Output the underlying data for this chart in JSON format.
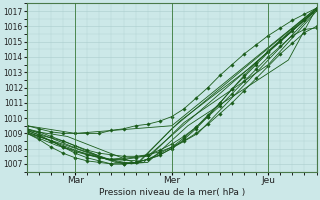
{
  "title": "Pression niveau de la mer( hPa )",
  "ylim": [
    1006.5,
    1017.5
  ],
  "yticks": [
    1007,
    1008,
    1009,
    1010,
    1011,
    1012,
    1013,
    1014,
    1015,
    1016,
    1017
  ],
  "background_color": "#cce8e8",
  "grid_color": "#aacccc",
  "line_color": "#1a5c1a",
  "xlim": [
    0,
    144
  ],
  "xtick_positions": [
    24,
    72,
    120
  ],
  "xtick_labels": [
    "Mar",
    "Mer",
    "Jeu"
  ],
  "day_lines": [
    24,
    72,
    120
  ],
  "series": [
    {
      "x": [
        0,
        24,
        72,
        144
      ],
      "y": [
        1009.5,
        1009.0,
        1009.5,
        1017.2
      ]
    },
    {
      "x": [
        0,
        20,
        55,
        72,
        144
      ],
      "y": [
        1009.2,
        1008.8,
        1007.0,
        1009.3,
        1017.2
      ]
    },
    {
      "x": [
        0,
        15,
        40,
        60,
        144
      ],
      "y": [
        1009.0,
        1008.2,
        1007.3,
        1007.5,
        1017.1
      ]
    },
    {
      "x": [
        0,
        12,
        30,
        52,
        65,
        85,
        144
      ],
      "y": [
        1009.1,
        1008.5,
        1007.6,
        1007.0,
        1007.5,
        1009.0,
        1017.1
      ]
    },
    {
      "x": [
        0,
        10,
        25,
        48,
        60,
        80,
        130,
        144
      ],
      "y": [
        1009.3,
        1008.8,
        1008.0,
        1007.0,
        1007.1,
        1009.5,
        1013.8,
        1017.2
      ]
    },
    {
      "x": [
        0,
        8,
        20,
        44,
        58,
        78,
        120,
        144
      ],
      "y": [
        1009.0,
        1008.7,
        1008.2,
        1007.1,
        1007.1,
        1009.7,
        1013.5,
        1017.0
      ]
    },
    {
      "x": [
        0,
        6,
        18,
        40,
        56,
        76,
        110,
        144
      ],
      "y": [
        1009.2,
        1008.9,
        1008.5,
        1007.3,
        1007.2,
        1009.8,
        1013.2,
        1017.1
      ]
    }
  ],
  "marker_series": [
    {
      "x": [
        0,
        6,
        12,
        18,
        24,
        30,
        36,
        42,
        48,
        54,
        60,
        66,
        72,
        78,
        84,
        90,
        96,
        102,
        108,
        114,
        120,
        126,
        132,
        138,
        144
      ],
      "y": [
        1009.5,
        1009.3,
        1009.1,
        1009.0,
        1009.0,
        1009.0,
        1009.0,
        1009.2,
        1009.3,
        1009.5,
        1009.6,
        1009.8,
        1010.1,
        1010.6,
        1011.3,
        1012.0,
        1012.8,
        1013.5,
        1014.2,
        1014.8,
        1015.4,
        1015.9,
        1016.4,
        1016.8,
        1017.2
      ]
    },
    {
      "x": [
        0,
        6,
        12,
        18,
        24,
        30,
        36,
        42,
        48,
        54,
        60,
        66,
        72,
        78,
        84,
        90,
        96,
        102,
        108,
        114,
        120,
        126,
        132,
        138,
        144
      ],
      "y": [
        1009.2,
        1008.9,
        1008.5,
        1008.1,
        1007.7,
        1007.4,
        1007.2,
        1007.0,
        1007.0,
        1007.1,
        1007.3,
        1007.7,
        1008.1,
        1008.7,
        1009.4,
        1010.2,
        1011.0,
        1011.9,
        1012.7,
        1013.5,
        1014.3,
        1015.0,
        1015.7,
        1016.4,
        1017.1
      ]
    },
    {
      "x": [
        0,
        6,
        12,
        18,
        24,
        30,
        36,
        42,
        48,
        54,
        60,
        66,
        72,
        78,
        84,
        90,
        96,
        102,
        108,
        114,
        120,
        126,
        132,
        138,
        144
      ],
      "y": [
        1009.0,
        1008.6,
        1008.1,
        1007.7,
        1007.4,
        1007.2,
        1007.1,
        1007.0,
        1007.0,
        1007.1,
        1007.3,
        1007.6,
        1008.0,
        1008.6,
        1009.3,
        1010.1,
        1011.0,
        1011.9,
        1012.8,
        1013.6,
        1014.4,
        1015.1,
        1015.8,
        1016.5,
        1017.1
      ]
    },
    {
      "x": [
        0,
        6,
        12,
        18,
        24,
        30,
        36,
        42,
        48,
        54,
        60,
        66,
        72,
        78,
        84,
        90,
        96,
        102,
        108,
        114,
        120,
        126,
        132,
        138,
        144
      ],
      "y": [
        1009.3,
        1009.1,
        1008.8,
        1008.5,
        1008.2,
        1007.9,
        1007.7,
        1007.6,
        1007.5,
        1007.5,
        1007.6,
        1007.8,
        1008.1,
        1008.5,
        1009.0,
        1009.6,
        1010.3,
        1011.0,
        1011.8,
        1012.6,
        1013.4,
        1014.2,
        1014.9,
        1015.6,
        1016.0
      ]
    },
    {
      "x": [
        0,
        6,
        12,
        18,
        24,
        30,
        36,
        42,
        48,
        54,
        60,
        66,
        72,
        78,
        84,
        90,
        96,
        102,
        108,
        114,
        120,
        126,
        132,
        138,
        144
      ],
      "y": [
        1009.1,
        1008.8,
        1008.5,
        1008.1,
        1007.8,
        1007.6,
        1007.4,
        1007.3,
        1007.3,
        1007.4,
        1007.6,
        1007.9,
        1008.3,
        1008.8,
        1009.4,
        1010.1,
        1010.8,
        1011.6,
        1012.4,
        1013.2,
        1014.0,
        1014.7,
        1015.4,
        1015.8,
        1015.9
      ]
    }
  ]
}
